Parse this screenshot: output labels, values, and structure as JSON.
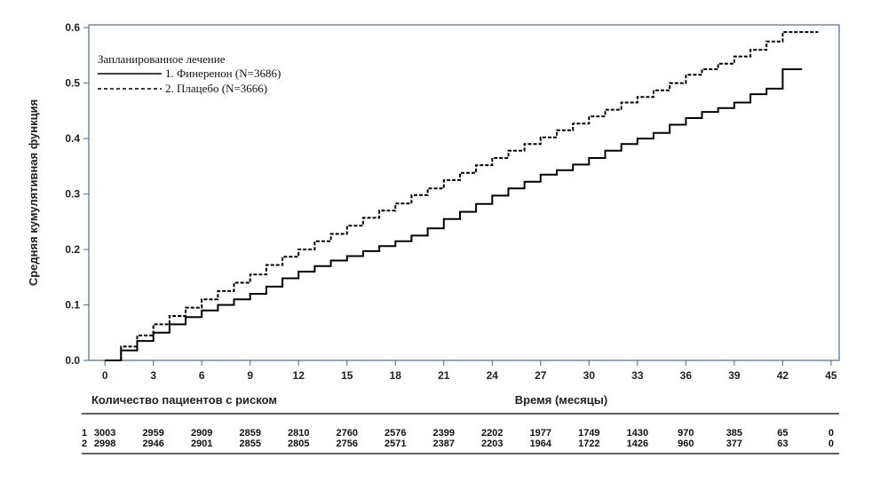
{
  "chart_data": {
    "type": "line",
    "ylabel": "Средняя кумулятивная функция",
    "xlabel": "Время (месяцы)",
    "risk_table_title": "Количество пациентов с риском",
    "xlim": [
      -1,
      45.5
    ],
    "ylim": [
      0,
      0.605
    ],
    "x_ticks": [
      0,
      3,
      6,
      9,
      12,
      15,
      18,
      21,
      24,
      27,
      30,
      33,
      36,
      39,
      42,
      45
    ],
    "y_ticks": [
      0.0,
      0.1,
      0.2,
      0.3,
      0.4,
      0.5,
      0.6
    ],
    "y_tick_labels": [
      "0.0",
      "0.1",
      "0.2",
      "0.3",
      "0.4",
      "0.5",
      "0.6"
    ],
    "legend": {
      "title": "Запланированное лечение",
      "position": "top-left"
    },
    "series": [
      {
        "name": "1. Финеренон (N=3686)",
        "style": "solid",
        "color": "#000000",
        "x": [
          0,
          1,
          2,
          3,
          4,
          5,
          6,
          7,
          8,
          9,
          10,
          11,
          12,
          13,
          14,
          15,
          16,
          17,
          18,
          19,
          20,
          21,
          22,
          23,
          24,
          25,
          26,
          27,
          28,
          29,
          30,
          31,
          32,
          33,
          34,
          35,
          36,
          37,
          38,
          39,
          40,
          41,
          42,
          43.2
        ],
        "y": [
          0.0,
          0.018,
          0.035,
          0.05,
          0.065,
          0.078,
          0.09,
          0.1,
          0.11,
          0.12,
          0.133,
          0.148,
          0.16,
          0.17,
          0.18,
          0.188,
          0.197,
          0.206,
          0.215,
          0.225,
          0.238,
          0.255,
          0.268,
          0.282,
          0.297,
          0.31,
          0.322,
          0.335,
          0.343,
          0.353,
          0.365,
          0.378,
          0.39,
          0.4,
          0.41,
          0.425,
          0.437,
          0.448,
          0.455,
          0.465,
          0.48,
          0.49,
          0.525,
          0.525
        ]
      },
      {
        "name": "2. Плацебо (N=3666)",
        "style": "dashed",
        "color": "#000000",
        "x": [
          0,
          1,
          2,
          3,
          4,
          5,
          6,
          7,
          8,
          9,
          10,
          11,
          12,
          13,
          14,
          15,
          16,
          17,
          18,
          19,
          20,
          21,
          22,
          23,
          24,
          25,
          26,
          27,
          28,
          29,
          30,
          31,
          32,
          33,
          34,
          35,
          36,
          37,
          38,
          39,
          40,
          41,
          42,
          44.2
        ],
        "y": [
          0.0,
          0.025,
          0.045,
          0.065,
          0.08,
          0.095,
          0.11,
          0.125,
          0.14,
          0.155,
          0.172,
          0.187,
          0.2,
          0.215,
          0.228,
          0.243,
          0.257,
          0.27,
          0.283,
          0.298,
          0.31,
          0.325,
          0.338,
          0.352,
          0.365,
          0.378,
          0.39,
          0.402,
          0.415,
          0.427,
          0.44,
          0.452,
          0.465,
          0.475,
          0.487,
          0.5,
          0.515,
          0.525,
          0.535,
          0.548,
          0.56,
          0.575,
          0.592,
          0.592
        ]
      }
    ],
    "risk_table": {
      "times": [
        0,
        3,
        6,
        9,
        12,
        15,
        18,
        21,
        24,
        27,
        30,
        33,
        36,
        39,
        42,
        45
      ],
      "rows": [
        {
          "label": "1",
          "values": [
            "3003",
            "2959",
            "2909",
            "2859",
            "2810",
            "2760",
            "2576",
            "2399",
            "2202",
            "1977",
            "1749",
            "1430",
            "970",
            "385",
            "65",
            "0"
          ]
        },
        {
          "label": "2",
          "values": [
            "2998",
            "2946",
            "2901",
            "2855",
            "2805",
            "2756",
            "2571",
            "2387",
            "2203",
            "1964",
            "1722",
            "1426",
            "960",
            "377",
            "63",
            "0"
          ]
        }
      ]
    }
  }
}
